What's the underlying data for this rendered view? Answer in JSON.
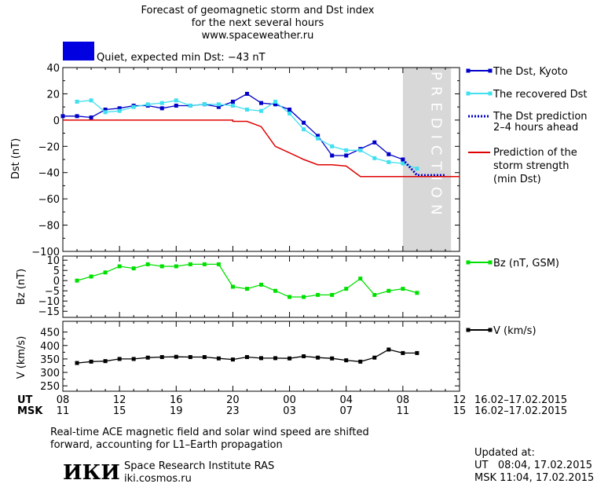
{
  "header": {
    "title": "Forecast of geomagnetic storm and Dst index",
    "subtitle": "for the next several hours",
    "site": "www.spaceweather.ru",
    "status_color": "#0000e0",
    "status_text": "Quiet, expected min Dst: −43 nT"
  },
  "colors": {
    "dst_kyoto": "#0000c8",
    "dst_recovered": "#40e0f0",
    "dst_prediction": "#0000c8",
    "storm_strength": "#e00000",
    "bz": "#00e000",
    "v": "#000000",
    "prediction_band": "#d8d8d8"
  },
  "legend": {
    "dst_kyoto": "The Dst, Kyoto",
    "dst_recovered": "The recovered Dst",
    "dst_prediction_1": "The Dst prediction",
    "dst_prediction_2": "2–4 hours ahead",
    "storm_1": "Prediction of the",
    "storm_2": "storm strength",
    "storm_3": "(min Dst)",
    "bz": "Bz (nT, GSM)",
    "v": "V (km/s)"
  },
  "prediction_label": "PREDICTION",
  "time_axis": {
    "ut_label": "UT",
    "msk_label": "MSK",
    "ut_ticks": [
      "08",
      "12",
      "16",
      "20",
      "00",
      "04",
      "08",
      "12"
    ],
    "msk_ticks": [
      "11",
      "15",
      "19",
      "23",
      "03",
      "07",
      "11",
      "15"
    ],
    "ut_range": "16.02–17.02.2015",
    "msk_range": "16.02–17.02.2015"
  },
  "chart_data": [
    {
      "type": "line",
      "ylabel": "Dst (nT)",
      "xlim_hours_ut": [
        8,
        36
      ],
      "ylim": [
        -100,
        40
      ],
      "yticks": [
        "40",
        "20",
        "0",
        "−20",
        "−40",
        "−60",
        "−80",
        "−100"
      ],
      "ytick_values": [
        40,
        20,
        0,
        -20,
        -40,
        -60,
        -80,
        -100
      ],
      "prediction_band_hours_ut": [
        32,
        35.4
      ],
      "series": [
        {
          "name": "The Dst, Kyoto",
          "x": [
            8,
            9,
            10,
            11,
            12,
            13,
            14,
            15,
            16,
            17,
            18,
            19,
            20,
            21,
            22,
            23,
            24,
            25,
            26,
            27,
            28,
            29,
            30,
            31,
            32
          ],
          "y": [
            3,
            3,
            2,
            8,
            9,
            11,
            11,
            9,
            11,
            11,
            12,
            10,
            14,
            20,
            13,
            12,
            8,
            -2,
            -12,
            -27,
            -27,
            -22,
            -17,
            -26,
            -30
          ]
        },
        {
          "name": "The recovered Dst",
          "x": [
            9,
            10,
            11,
            12,
            13,
            14,
            15,
            16,
            17,
            18,
            19,
            20,
            21,
            22,
            23,
            24,
            25,
            26,
            27,
            28,
            29,
            30,
            31,
            32,
            33
          ],
          "y": [
            14,
            15,
            6,
            7,
            10,
            12,
            13,
            15,
            11,
            12,
            12,
            11,
            8,
            7,
            14,
            5,
            -7,
            -14,
            -20,
            -23,
            -23,
            -29,
            -32,
            -33,
            -37
          ]
        },
        {
          "name": "The Dst prediction 2–4 hours ahead",
          "x": [
            32,
            33,
            34,
            35
          ],
          "y": [
            -30,
            -42,
            -42,
            -42
          ]
        },
        {
          "name": "Prediction of the storm strength (min Dst)",
          "x": [
            8,
            20,
            20,
            21,
            22,
            23,
            24,
            25,
            26,
            27,
            28,
            29,
            30,
            31,
            32,
            33,
            34,
            35,
            36
          ],
          "y": [
            0,
            0,
            -1,
            -1,
            -5,
            -20,
            -25,
            -30,
            -34,
            -34,
            -35,
            -43,
            -43,
            -43,
            -43,
            -43,
            -43,
            -43,
            -43
          ]
        }
      ]
    },
    {
      "type": "line",
      "ylabel": "Bz (nT)",
      "xlim_hours_ut": [
        8,
        36
      ],
      "ylim": [
        -18,
        12
      ],
      "yticks": [
        "10",
        "5",
        "0",
        "−5",
        "−10",
        "−15"
      ],
      "ytick_values": [
        10,
        5,
        0,
        -5,
        -10,
        -15
      ],
      "series": [
        {
          "name": "Bz (nT, GSM)",
          "x": [
            9,
            10,
            11,
            12,
            13,
            14,
            15,
            16,
            17,
            18,
            19,
            20,
            21,
            22,
            23,
            24,
            25,
            26,
            27,
            28,
            29,
            30,
            31,
            32,
            33
          ],
          "y": [
            0,
            2,
            4,
            7,
            6,
            8,
            7,
            7,
            8,
            8,
            8,
            -3,
            -4,
            -2,
            -5,
            -8,
            -8,
            -7,
            -7,
            -4,
            1,
            -7,
            -5,
            -4,
            -6
          ]
        }
      ]
    },
    {
      "type": "line",
      "ylabel": "V (km/s)",
      "xlim_hours_ut": [
        8,
        36
      ],
      "ylim": [
        230,
        490
      ],
      "yticks": [
        "450",
        "400",
        "350",
        "300",
        "250"
      ],
      "ytick_values": [
        450,
        400,
        350,
        300,
        250
      ],
      "series": [
        {
          "name": "V (km/s)",
          "x": [
            9,
            10,
            11,
            12,
            13,
            14,
            15,
            16,
            17,
            18,
            19,
            20,
            21,
            22,
            23,
            24,
            25,
            26,
            27,
            28,
            29,
            30,
            31,
            32,
            33
          ],
          "y": [
            335,
            340,
            342,
            350,
            350,
            355,
            357,
            358,
            357,
            357,
            352,
            348,
            357,
            353,
            353,
            352,
            360,
            355,
            352,
            345,
            340,
            355,
            385,
            372,
            372
          ]
        }
      ]
    }
  ],
  "footer": {
    "note_1": "Real-time ACE magnetic field and solar wind speed are shifted",
    "note_2": "forward, accounting for L1–Earth propagation",
    "logo": "ИКИ",
    "institute": "Space Research Institute RAS",
    "institute_url": "iki.cosmos.ru",
    "updated_label": "Updated at:",
    "updated_ut": "UT   08:04, 17.02.2015",
    "updated_msk": "MSK 11:04, 17.02.2015"
  }
}
